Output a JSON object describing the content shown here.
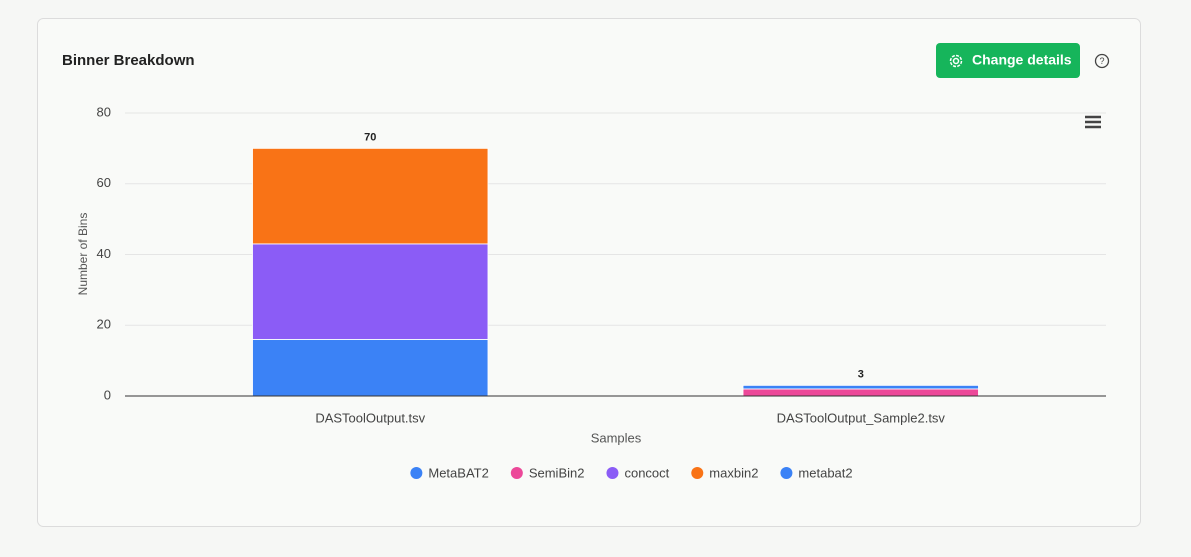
{
  "header": {
    "title": "Binner Breakdown",
    "button": "Change details"
  },
  "chart_data": {
    "type": "stacked-bar",
    "xlabel": "Samples",
    "ylabel": "Number of Bins",
    "categories": [
      "DASToolOutput.tsv",
      "DASToolOutput_Sample2.tsv"
    ],
    "series": [
      {
        "name": "MetaBAT2",
        "color": "#3b82f6",
        "values": [
          16,
          0
        ]
      },
      {
        "name": "SemiBin2",
        "color": "#ec4899",
        "values": [
          0,
          2
        ]
      },
      {
        "name": "concoct",
        "color": "#8b5cf6",
        "values": [
          27,
          0
        ]
      },
      {
        "name": "maxbin2",
        "color": "#f97316",
        "values": [
          27,
          0
        ]
      },
      {
        "name": "metabat2",
        "color": "#3b82f6",
        "values": [
          0,
          1
        ]
      }
    ],
    "total_labels": [
      70,
      3
    ],
    "ylim": [
      0,
      80
    ],
    "yticks": [
      0,
      20,
      40,
      60,
      80
    ],
    "grid": true
  }
}
